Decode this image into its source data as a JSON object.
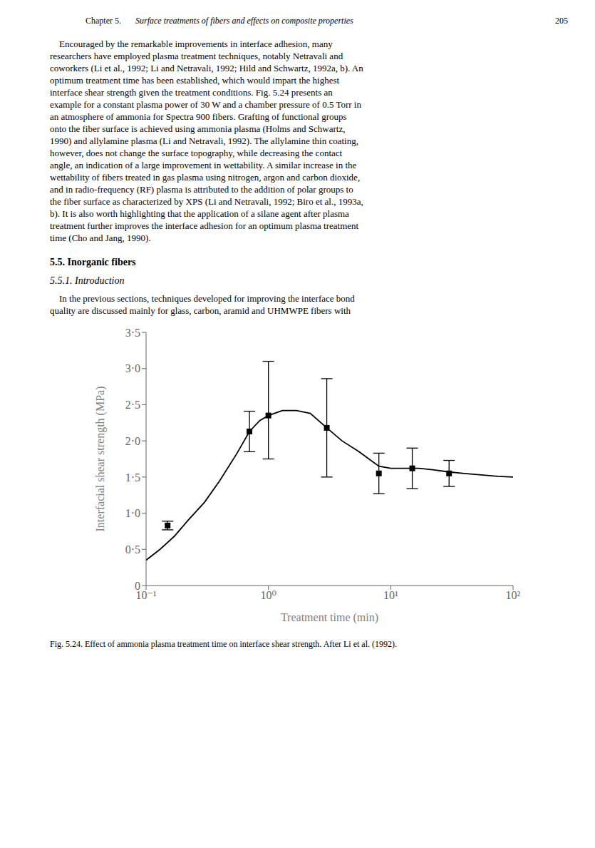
{
  "chart_data": {
    "type": "line",
    "title": "Fig. 5.24. Effect of ammonia plasma treatment time on interface shear strength. After Li et al. (1992).",
    "annotations": [
      [
        "Chapter 5.",
        "Surface treatments of fibers and effects on composite properties",
        "205"
      ],
      [
        "    Encouraged by the remarkable improvements in interface adhesion, many",
        "researchers have employed plasma treatment techniques, notably Netravali and",
        "coworkers (Li et al., 1992; Li and Netravali, 1992; Hild and Schwartz, 1992a, b). An",
        "optimum treatment time has been established, which would impart the highest",
        "interface shear strength given the treatment conditions. Fig. 5.24 presents an",
        "example for a constant plasma power of 30 W and a chamber pressure of 0.5 Torr in",
        "an atmosphere of ammonia for Spectra 900 fibers. Grafting of functional groups",
        "onto the fiber surface is achieved using ammonia plasma (Holms and Schwartz,",
        "1990) and allylamine plasma (Li and Netravali, 1992). The allylamine thin coating,",
        "however, does not change the surface topography, while decreasing the contact",
        "angle, an indication of a large improvement in wettability. A similar increase in the",
        "wettability of fibers treated in gas plasma using nitrogen, argon and carbon dioxide,",
        "and in radio-frequency (RF) plasma is attributed to the addition of polar groups to",
        "the fiber surface as characterized by XPS (Li and Netravali, 1992; Biro et al., 1993a,",
        "b). It is also worth highlighting that the application of a silane agent after plasma",
        "treatment further improves the interface adhesion for an optimum plasma treatment",
        "time (Cho and Jang, 1990)."
      ],
      [
        "5.5.  Inorganic fibers"
      ],
      [
        "5.5.1.  Introduction"
      ],
      [
        "    In the previous sections, techniques developed for improving the interface bond",
        "quality are discussed mainly for glass, carbon, aramid and UHMWPE fibers with"
      ]
    ],
    "xlabel": "Treatment time (min)",
    "ylabel": "Interfacial shear strength (MPa)",
    "log": "x",
    "grid": false,
    "xlim": [
      0.1,
      100
    ],
    "xticks": [
      {
        "value": 0.1,
        "label": "10⁻¹"
      },
      {
        "value": 1,
        "label": "10⁰"
      },
      {
        "value": 10,
        "label": "10¹"
      },
      {
        "value": 100,
        "label": "10²"
      }
    ],
    "ylim": [
      0,
      3.5
    ],
    "yticks": [
      0,
      {
        "value": 0.5,
        "label": "0·5"
      },
      {
        "value": 1.0,
        "label": "1·0"
      },
      {
        "value": 1.5,
        "label": "1·5"
      },
      {
        "value": 2.0,
        "label": "2·0"
      },
      {
        "value": 2.5,
        "label": "2·5"
      },
      {
        "value": 3.0,
        "label": "3·0"
      },
      {
        "value": 3.5,
        "label": "3·5"
      }
    ],
    "series": [
      {
        "type": "line",
        "line_style": "solid",
        "color": "#000000",
        "x": [
          0.1,
          0.13,
          0.17,
          0.22,
          0.3,
          0.4,
          0.55,
          0.7,
          0.85,
          1.0,
          1.3,
          1.7,
          2.2,
          3.0,
          4.0,
          5.5,
          7.0,
          8.0,
          10.0,
          13.0,
          17.0,
          22.0,
          30.0,
          40.0,
          55.0,
          75.0,
          100.0
        ],
        "values": [
          0.35,
          0.5,
          0.68,
          0.9,
          1.15,
          1.45,
          1.82,
          2.13,
          2.28,
          2.35,
          2.42,
          2.42,
          2.38,
          2.18,
          2.0,
          1.85,
          1.72,
          1.65,
          1.62,
          1.62,
          1.62,
          1.6,
          1.57,
          1.55,
          1.53,
          1.51,
          1.5
        ]
      },
      {
        "type": "scatter",
        "marker": "square",
        "color": "#000000",
        "x": [
          0.15,
          0.7,
          1.0,
          3.0,
          8.0,
          15.0,
          30.0
        ],
        "values": [
          0.83,
          2.13,
          2.35,
          2.18,
          1.55,
          1.62,
          1.55
        ],
        "error_low": [
          0.06,
          0.28,
          0.6,
          0.68,
          0.28,
          0.28,
          0.18
        ],
        "error_high": [
          0.06,
          0.28,
          0.75,
          0.68,
          0.28,
          0.28,
          0.18
        ]
      }
    ]
  }
}
